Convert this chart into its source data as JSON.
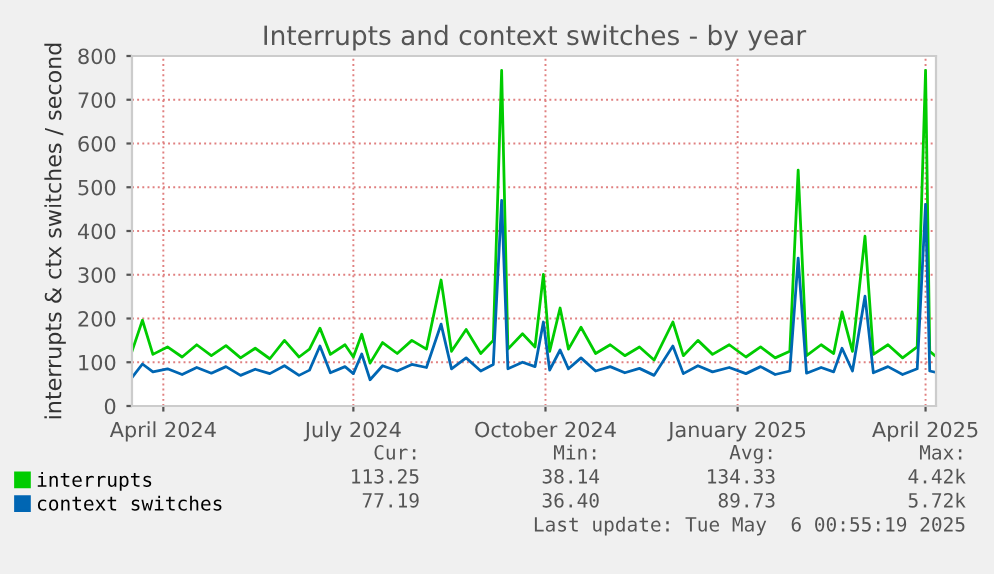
{
  "chart_data": {
    "type": "line",
    "title": "Interrupts and context switches - by year",
    "ylabel": "interrupts & ctx switches / second",
    "x": [
      "2024-03-17",
      "2024-03-22",
      "2024-03-27",
      "2024-04-03",
      "2024-04-10",
      "2024-04-17",
      "2024-04-24",
      "2024-05-01",
      "2024-05-08",
      "2024-05-15",
      "2024-05-22",
      "2024-05-29",
      "2024-06-05",
      "2024-06-10",
      "2024-06-15",
      "2024-06-20",
      "2024-06-27",
      "2024-07-01",
      "2024-07-05",
      "2024-07-09",
      "2024-07-15",
      "2024-07-22",
      "2024-07-29",
      "2024-08-05",
      "2024-08-12",
      "2024-08-17",
      "2024-08-24",
      "2024-08-31",
      "2024-09-06",
      "2024-09-10",
      "2024-09-13",
      "2024-09-20",
      "2024-09-26",
      "2024-09-30",
      "2024-10-03",
      "2024-10-08",
      "2024-10-12",
      "2024-10-18",
      "2024-10-25",
      "2024-11-01",
      "2024-11-08",
      "2024-11-15",
      "2024-11-22",
      "2024-12-01",
      "2024-12-06",
      "2024-12-13",
      "2024-12-20",
      "2024-12-28",
      "2025-01-05",
      "2025-01-12",
      "2025-01-19",
      "2025-01-26",
      "2025-01-30",
      "2025-02-03",
      "2025-02-10",
      "2025-02-16",
      "2025-02-20",
      "2025-02-25",
      "2025-03-03",
      "2025-03-07",
      "2025-03-14",
      "2025-03-21",
      "2025-03-28",
      "2025-04-01",
      "2025-04-03",
      "2025-04-06"
    ],
    "series": [
      {
        "name": "interrupts",
        "color": "#00cc00",
        "values": [
          125,
          196,
          118,
          135,
          112,
          140,
          115,
          138,
          110,
          132,
          108,
          150,
          112,
          130,
          178,
          118,
          140,
          112,
          164,
          98,
          145,
          120,
          150,
          130,
          288,
          125,
          175,
          120,
          150,
          767,
          130,
          165,
          135,
          301,
          125,
          224,
          130,
          180,
          120,
          140,
          115,
          135,
          105,
          192,
          115,
          150,
          118,
          140,
          112,
          135,
          110,
          125,
          539,
          115,
          140,
          120,
          215,
          125,
          388,
          118,
          140,
          110,
          135,
          767,
          125,
          113
        ]
      },
      {
        "name": "context switches",
        "color": "#0066b3",
        "values": [
          65,
          96,
          78,
          85,
          72,
          88,
          75,
          90,
          70,
          84,
          74,
          92,
          70,
          82,
          137,
          76,
          90,
          74,
          119,
          60,
          92,
          80,
          95,
          88,
          187,
          85,
          110,
          80,
          95,
          470,
          85,
          100,
          90,
          192,
          82,
          128,
          85,
          110,
          80,
          90,
          76,
          86,
          70,
          137,
          74,
          92,
          78,
          88,
          74,
          90,
          72,
          80,
          338,
          75,
          88,
          78,
          132,
          80,
          251,
          76,
          90,
          72,
          85,
          461,
          80,
          77
        ]
      }
    ],
    "xlim": [
      "2024-03-17",
      "2025-04-06"
    ],
    "xticks": [
      {
        "value": "2024-04-01",
        "label": "April 2024"
      },
      {
        "value": "2024-07-01",
        "label": "July 2024"
      },
      {
        "value": "2024-10-01",
        "label": "October 2024"
      },
      {
        "value": "2025-01-01",
        "label": "January 2025"
      },
      {
        "value": "2025-04-01",
        "label": "April 2025"
      }
    ],
    "ylim": [
      0,
      800
    ],
    "yticks": [
      0,
      100,
      200,
      300,
      400,
      500,
      600,
      700,
      800
    ],
    "grid": true,
    "legend": "bottom left",
    "marker": "none",
    "line_style": "solid",
    "annotations": [
      "Cur:",
      "Min:",
      "Avg:",
      "Max:",
      "113.25",
      "38.14",
      "134.33",
      "4.42k",
      "77.19",
      "36.40",
      "89.73",
      "5.72k",
      "Last update: Tue May  6 00:55:19 2025"
    ]
  }
}
